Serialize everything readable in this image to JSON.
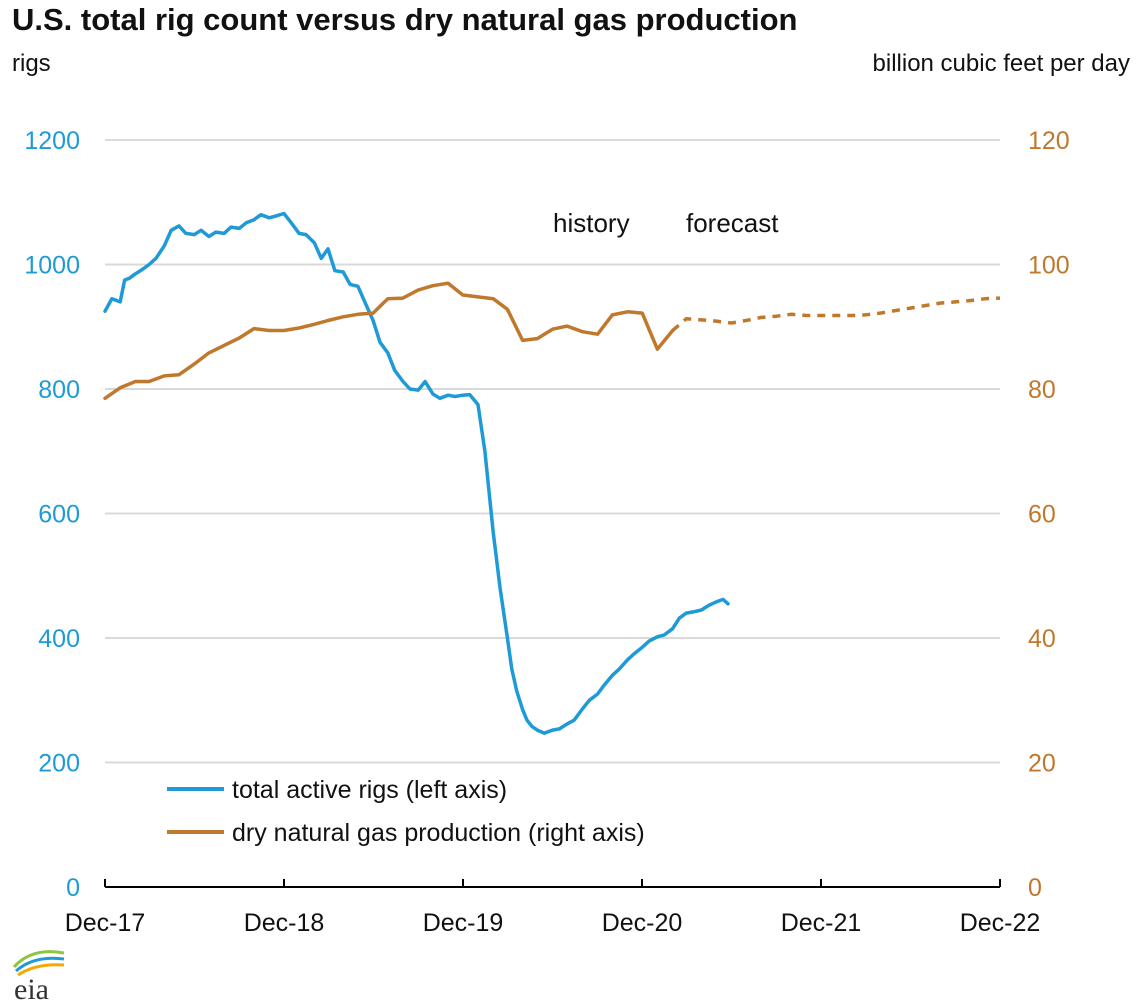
{
  "title": "U.S. total rig count versus dry natural gas production",
  "left_unit": "rigs",
  "right_unit": "billion cubic feet per day",
  "logo_text": "eia",
  "colors": {
    "rigs": "#1E9BD7",
    "gas": "#C0782C",
    "grid": "#d9d9d9",
    "axis": "#000000",
    "text": "#111111"
  },
  "chart_data": {
    "type": "line",
    "title": "U.S. total rig count versus dry natural gas production",
    "x_tick_labels": [
      "Dec-17",
      "Dec-18",
      "Dec-19",
      "Dec-20",
      "Dec-21",
      "Dec-22"
    ],
    "x_range": [
      "2017-12",
      "2022-12"
    ],
    "y_left": {
      "label": "rigs",
      "range": [
        0,
        1200
      ],
      "ticks": [
        0,
        200,
        400,
        600,
        800,
        1000,
        1200
      ]
    },
    "y_right": {
      "label": "billion cubic feet per day",
      "range": [
        0,
        120
      ],
      "ticks": [
        0,
        20,
        40,
        60,
        80,
        100,
        120
      ]
    },
    "grid": true,
    "legend_position": "bottom-left",
    "annotations": {
      "history": "history",
      "forecast": "forecast"
    },
    "series": [
      {
        "name": "total active rigs (left axis)",
        "axis": "left",
        "style": "solid",
        "x": [
          "2017-12-01",
          "2017-12-15",
          "2018-01-01",
          "2018-01-10",
          "2018-01-20",
          "2018-02-01",
          "2018-02-15",
          "2018-03-01",
          "2018-03-15",
          "2018-04-01",
          "2018-04-15",
          "2018-05-01",
          "2018-05-15",
          "2018-06-01",
          "2018-06-15",
          "2018-07-01",
          "2018-07-15",
          "2018-08-01",
          "2018-08-15",
          "2018-09-01",
          "2018-09-15",
          "2018-10-01",
          "2018-10-15",
          "2018-11-01",
          "2018-11-15",
          "2018-12-01",
          "2018-12-15",
          "2019-01-01",
          "2019-01-15",
          "2019-02-01",
          "2019-02-15",
          "2019-03-01",
          "2019-03-15",
          "2019-04-01",
          "2019-04-15",
          "2019-05-01",
          "2019-05-15",
          "2019-06-01",
          "2019-06-15",
          "2019-07-01",
          "2019-07-15",
          "2019-08-01",
          "2019-08-15",
          "2019-09-01",
          "2019-09-15",
          "2019-10-01",
          "2019-10-15",
          "2019-11-01",
          "2019-11-15",
          "2019-12-01",
          "2019-12-15",
          "2020-01-01",
          "2020-01-15",
          "2020-02-01",
          "2020-02-15",
          "2020-03-01",
          "2020-03-10",
          "2020-03-20",
          "2020-04-01",
          "2020-04-10",
          "2020-04-20",
          "2020-05-01",
          "2020-05-15",
          "2020-06-01",
          "2020-06-15",
          "2020-07-01",
          "2020-07-15",
          "2020-08-01",
          "2020-08-15",
          "2020-09-01",
          "2020-09-15",
          "2020-10-01",
          "2020-10-15",
          "2020-11-01",
          "2020-11-15",
          "2020-12-01",
          "2020-12-15",
          "2021-01-01",
          "2021-01-15",
          "2021-02-01",
          "2021-02-15",
          "2021-03-01",
          "2021-03-15",
          "2021-04-01",
          "2021-04-15",
          "2021-05-01",
          "2021-05-15",
          "2021-05-25"
        ],
        "values": [
          925,
          945,
          940,
          975,
          978,
          985,
          992,
          1000,
          1010,
          1030,
          1055,
          1062,
          1050,
          1048,
          1055,
          1045,
          1052,
          1050,
          1060,
          1058,
          1067,
          1072,
          1080,
          1075,
          1078,
          1082,
          1068,
          1050,
          1048,
          1035,
          1010,
          1025,
          990,
          988,
          968,
          965,
          940,
          910,
          875,
          858,
          830,
          812,
          800,
          798,
          812,
          792,
          785,
          790,
          788,
          790,
          791,
          775,
          700,
          570,
          480,
          400,
          350,
          315,
          285,
          268,
          258,
          252,
          247,
          252,
          254,
          262,
          268,
          286,
          300,
          310,
          325,
          340,
          350,
          365,
          375,
          385,
          395,
          402,
          405,
          415,
          432,
          440,
          442,
          445,
          452,
          458,
          462,
          455
        ]
      },
      {
        "name": "dry natural gas production (right axis)",
        "axis": "right",
        "style": "solid",
        "x": [
          "2017-12",
          "2018-01",
          "2018-02",
          "2018-03",
          "2018-04",
          "2018-05",
          "2018-06",
          "2018-07",
          "2018-08",
          "2018-09",
          "2018-10",
          "2018-11",
          "2018-12",
          "2019-01",
          "2019-02",
          "2019-03",
          "2019-04",
          "2019-05",
          "2019-06",
          "2019-07",
          "2019-08",
          "2019-09",
          "2019-10",
          "2019-11",
          "2019-12",
          "2020-01",
          "2020-02",
          "2020-03",
          "2020-04",
          "2020-05",
          "2020-06",
          "2020-07",
          "2020-08",
          "2020-09",
          "2020-10",
          "2020-11",
          "2020-12",
          "2021-01",
          "2021-02"
        ],
        "values": [
          78.5,
          80.2,
          81.2,
          81.2,
          82.1,
          82.3,
          84.0,
          85.8,
          87.0,
          88.2,
          89.7,
          89.4,
          89.4,
          89.8,
          90.4,
          91.0,
          91.6,
          92.0,
          92.2,
          94.5,
          94.6,
          95.9,
          96.6,
          97.0,
          95.1,
          94.8,
          94.5,
          92.8,
          87.8,
          88.1,
          89.6,
          90.1,
          89.2,
          88.8,
          91.9,
          92.4,
          92.2,
          86.4,
          89.4
        ]
      },
      {
        "name": "dry natural gas production forecast",
        "axis": "right",
        "style": "dashed",
        "x": [
          "2021-02",
          "2021-03",
          "2021-04",
          "2021-05",
          "2021-06",
          "2021-07",
          "2021-08",
          "2021-09",
          "2021-10",
          "2021-11",
          "2021-12",
          "2022-01",
          "2022-02",
          "2022-03",
          "2022-04",
          "2022-05",
          "2022-06",
          "2022-07",
          "2022-08",
          "2022-09",
          "2022-10",
          "2022-11",
          "2022-12"
        ],
        "values": [
          89.4,
          91.3,
          91.1,
          90.9,
          90.6,
          91.0,
          91.5,
          91.7,
          92.0,
          91.8,
          91.8,
          91.8,
          91.8,
          91.9,
          92.2,
          92.6,
          93.0,
          93.4,
          93.8,
          94.0,
          94.2,
          94.5,
          94.6
        ]
      }
    ]
  }
}
